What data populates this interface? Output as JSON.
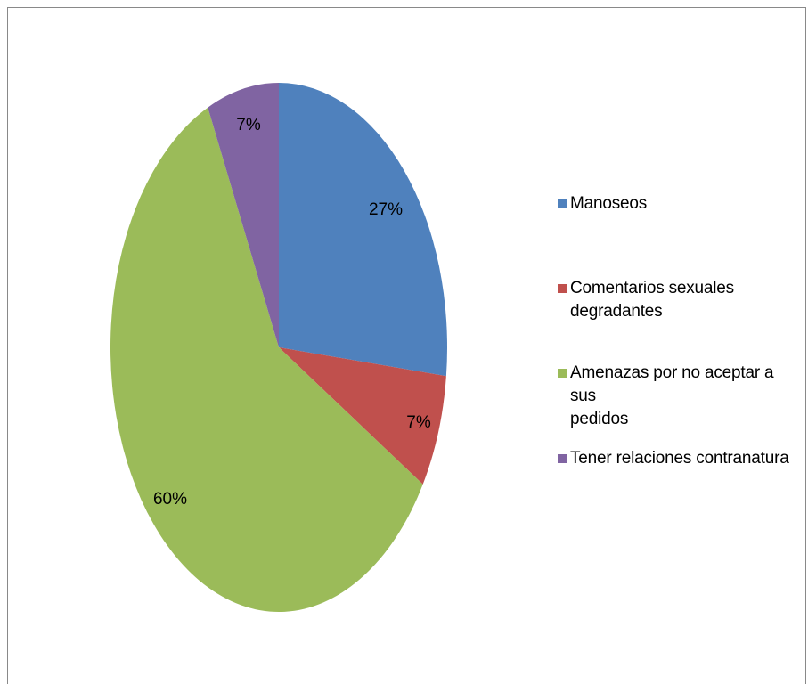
{
  "chart_data": {
    "type": "pie",
    "slices": [
      {
        "label": "Manoseos",
        "value": 27,
        "display": "27%",
        "color": "#4F81BD"
      },
      {
        "label": "Comentarios sexuales degradantes",
        "value": 7,
        "display": "7%",
        "color": "#C0504D"
      },
      {
        "label": "Amenazas por no aceptar a sus pedidos",
        "value": 60,
        "display": "60%",
        "color": "#9BBB59"
      },
      {
        "label": "Tener relaciones contranatura",
        "value": 7,
        "display": "7%",
        "color": "#8064A2"
      }
    ],
    "legend_position": "right",
    "title": ""
  },
  "legend": {
    "items": [
      {
        "lines": [
          "Manoseos"
        ]
      },
      {
        "lines": [
          "Comentarios sexuales",
          "degradantes"
        ]
      },
      {
        "lines": [
          "Amenazas por no aceptar a sus",
          "pedidos"
        ]
      },
      {
        "lines": [
          "Tener relaciones contranatura"
        ]
      }
    ]
  }
}
